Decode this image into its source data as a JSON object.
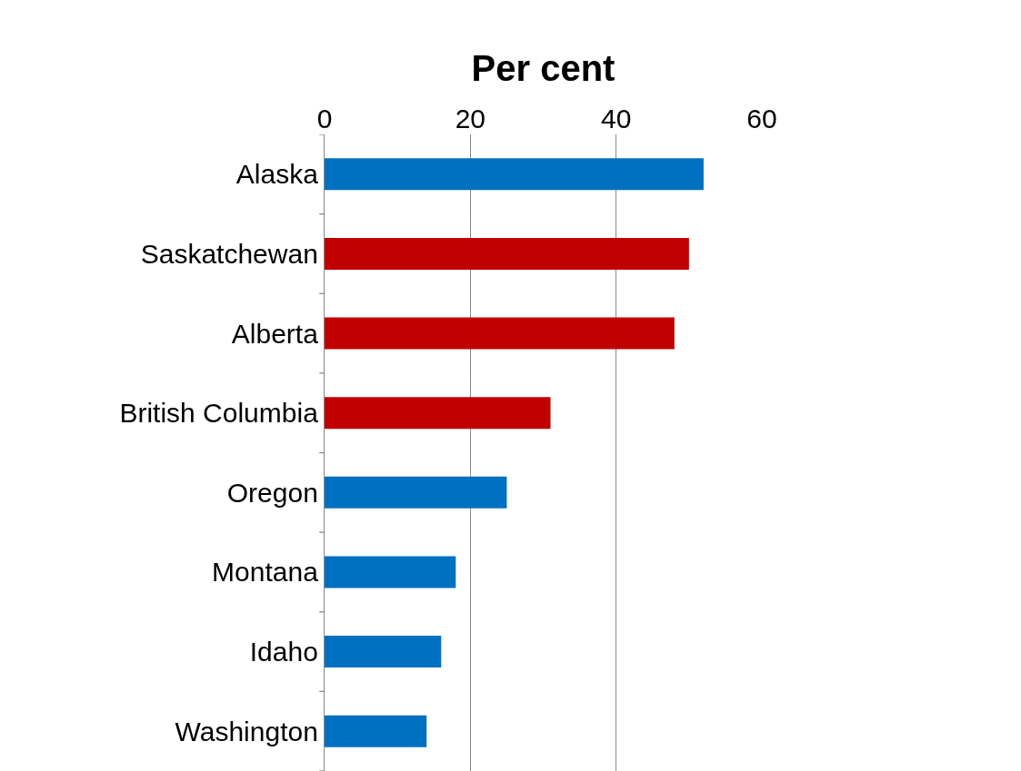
{
  "chart_data": {
    "type": "bar",
    "orientation": "horizontal",
    "xlabel": "Per cent",
    "categories": [
      "Alaska",
      "Saskatchewan",
      "Alberta",
      "British Columbia",
      "Oregon",
      "Montana",
      "Idaho",
      "Washington"
    ],
    "values": [
      52,
      50,
      48,
      31,
      25,
      18,
      16,
      14
    ],
    "colors": [
      "#0070c0",
      "#c00000",
      "#c00000",
      "#c00000",
      "#0070c0",
      "#0070c0",
      "#0070c0",
      "#0070c0"
    ],
    "xlim": [
      0,
      60
    ],
    "xticks": [
      0,
      20,
      40,
      60
    ],
    "grid": "x"
  }
}
